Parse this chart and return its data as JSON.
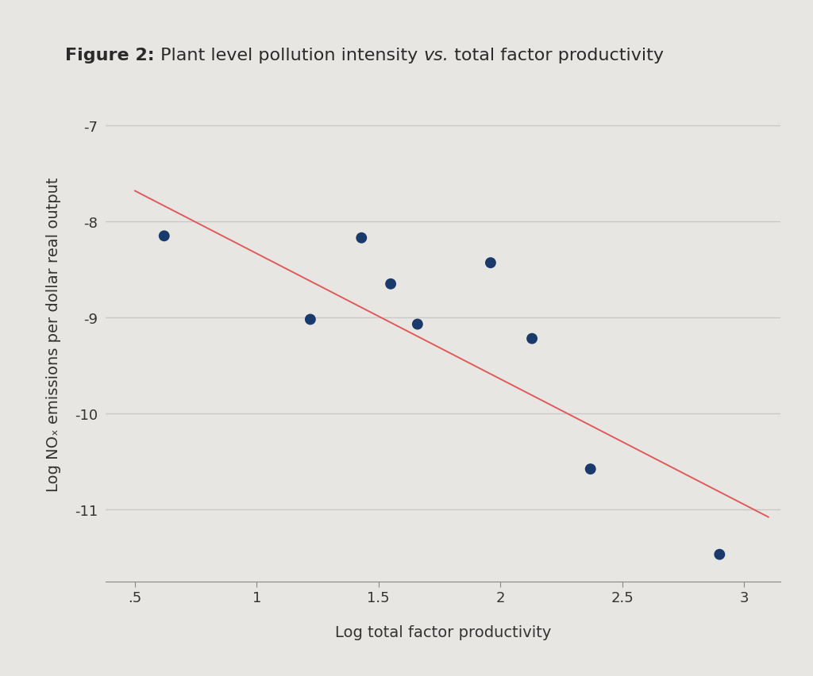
{
  "title_bold": "Figure 2:",
  "title_regular": " Plant level pollution intensity ",
  "title_italic": "vs.",
  "title_end": " total factor productivity",
  "xlabel": "Log total factor productivity",
  "ylabel": "Log NOₓ emissions per dollar real output",
  "scatter_x": [
    0.62,
    1.22,
    1.43,
    1.55,
    1.66,
    1.96,
    2.13,
    2.37,
    2.9
  ],
  "scatter_y": [
    -8.15,
    -9.02,
    -8.17,
    -8.65,
    -9.07,
    -8.43,
    -9.22,
    -10.58,
    -11.47
  ],
  "dot_color": "#1a3a6b",
  "dot_size": 100,
  "line_x": [
    0.5,
    3.1
  ],
  "line_y": [
    -7.68,
    -11.08
  ],
  "line_color": "#e05a5a",
  "line_width": 1.4,
  "xlim": [
    0.38,
    3.15
  ],
  "ylim": [
    -11.75,
    -6.6
  ],
  "xticks": [
    0.5,
    1.0,
    1.5,
    2.0,
    2.5,
    3.0
  ],
  "xticklabels": [
    ".5",
    "1",
    "1.5",
    "2",
    "2.5",
    "3"
  ],
  "yticks": [
    -7,
    -8,
    -9,
    -10,
    -11
  ],
  "yticklabels": [
    "-7",
    "-8",
    "-9",
    "-10",
    "-11"
  ],
  "background_color": "#e8e6e3",
  "plot_bg_color": "#e8e6e3",
  "grid_color": "#c8c8c8",
  "tick_fontsize": 13,
  "label_fontsize": 14,
  "title_fontsize": 16
}
